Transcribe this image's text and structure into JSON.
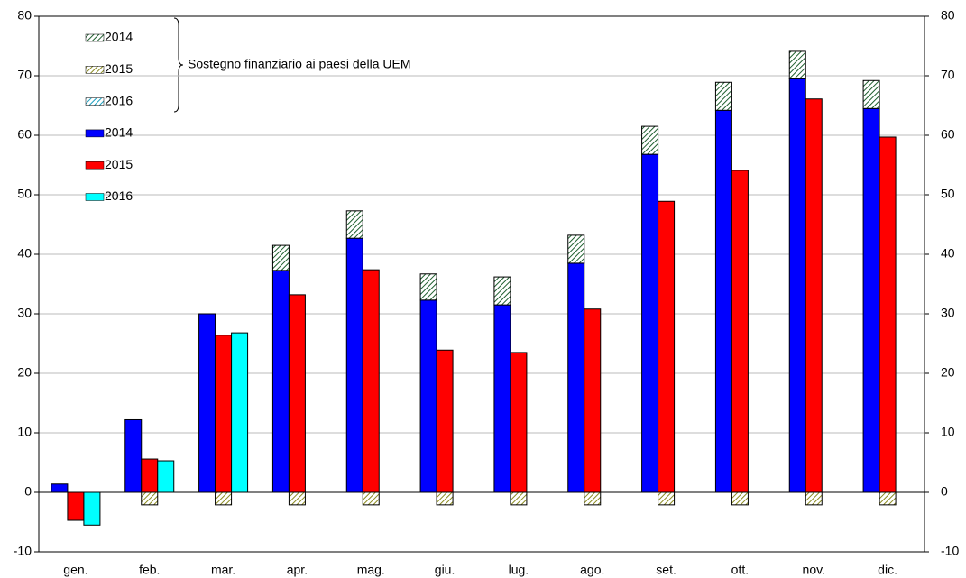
{
  "chart_data": {
    "type": "bar",
    "annotation": "Sostegno finanziario ai paesi della UEM",
    "categories": [
      "gen.",
      "feb.",
      "mar.",
      "apr.",
      "mag.",
      "giu.",
      "lug.",
      "ago.",
      "set.",
      "ott.",
      "nov.",
      "dic."
    ],
    "series": [
      {
        "name": "2014",
        "color": "#0000ff",
        "values": [
          1.4,
          12.2,
          30.0,
          37.3,
          42.7,
          32.3,
          31.5,
          38.5,
          56.8,
          64.2,
          69.5,
          64.5
        ],
        "support": {
          "name": "2014",
          "color": "#1f5f2f",
          "values": [
            null,
            null,
            null,
            4.2,
            4.6,
            4.4,
            4.7,
            4.7,
            4.7,
            4.7,
            4.6,
            4.7
          ]
        }
      },
      {
        "name": "2015",
        "color": "#ff0000",
        "values": [
          -4.7,
          5.6,
          26.4,
          33.2,
          37.4,
          23.9,
          23.5,
          30.8,
          48.9,
          54.1,
          66.1,
          59.7
        ],
        "support": {
          "name": "2015",
          "color": "#8a8a20",
          "values": [
            null,
            -2.1,
            -2.1,
            -2.1,
            -2.1,
            -2.1,
            -2.1,
            -2.1,
            -2.1,
            -2.1,
            -2.1,
            -2.1
          ]
        }
      },
      {
        "name": "2016",
        "color": "#00ffff",
        "values": [
          -5.5,
          5.3,
          26.8,
          null,
          null,
          null,
          null,
          null,
          null,
          null,
          null,
          null
        ],
        "support": {
          "name": "2016",
          "color": "#1aa0c0",
          "values": [
            null,
            null,
            null,
            null,
            null,
            null,
            null,
            null,
            null,
            null,
            null,
            null
          ]
        }
      }
    ],
    "ylim": [
      -10,
      80
    ],
    "yticks": [
      -10,
      0,
      10,
      20,
      30,
      40,
      50,
      60,
      70,
      80
    ],
    "y2lim": [
      -10,
      80
    ],
    "y2ticks": [
      -10,
      0,
      10,
      20,
      30,
      40,
      50,
      60,
      70,
      80
    ],
    "grid": true
  }
}
